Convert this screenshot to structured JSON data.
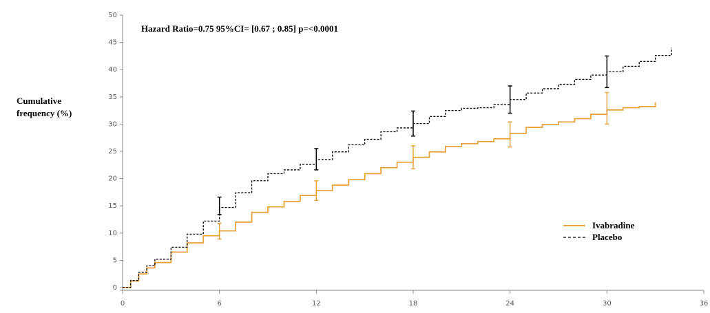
{
  "chart_data": {
    "type": "line",
    "title": "",
    "annotation": "Hazard Ratio=0.75 95%CI= [0.67 ; 0.85]   p=<0.0001",
    "xlabel": "",
    "ylabel": "Cumulative frequency (%)",
    "xlim": [
      0,
      36
    ],
    "ylim": [
      0,
      50
    ],
    "xticks": [
      0,
      6,
      12,
      18,
      24,
      30,
      36
    ],
    "yticks": [
      0,
      5,
      10,
      15,
      20,
      25,
      30,
      35,
      40,
      45,
      50
    ],
    "grid": false,
    "legend_position": "lower-right",
    "series": [
      {
        "name": "Ivabradine",
        "color": "#E8A33C",
        "style": "solid",
        "x": [
          0,
          0.5,
          1,
          1.5,
          2,
          3,
          4,
          5,
          6,
          7,
          8,
          9,
          10,
          11,
          12,
          13,
          14,
          15,
          16,
          17,
          18,
          19,
          20,
          21,
          22,
          23,
          24,
          25,
          26,
          27,
          28,
          29,
          30,
          31,
          32,
          33
        ],
        "y": [
          0,
          1.2,
          2.5,
          3.6,
          4.6,
          6.5,
          8.2,
          9.5,
          10.4,
          12.0,
          13.8,
          14.8,
          15.8,
          16.9,
          17.8,
          18.8,
          19.8,
          20.9,
          22.0,
          23.0,
          23.9,
          24.9,
          25.9,
          26.4,
          26.8,
          27.3,
          28.3,
          29.4,
          29.9,
          30.4,
          31.0,
          31.8,
          32.6,
          33.0,
          33.2,
          34.0
        ]
      },
      {
        "name": "Placebo",
        "color": "#000000",
        "style": "dashed",
        "x": [
          0,
          0.5,
          1,
          1.5,
          2,
          3,
          4,
          5,
          6,
          7,
          8,
          9,
          10,
          11,
          12,
          13,
          14,
          15,
          16,
          17,
          18,
          19,
          20,
          21,
          22,
          23,
          24,
          25,
          26,
          27,
          28,
          29,
          30,
          31,
          32,
          33,
          34
        ],
        "y": [
          0,
          1.3,
          2.8,
          4.0,
          5.2,
          7.4,
          9.8,
          12.2,
          14.7,
          17.4,
          19.6,
          20.9,
          21.6,
          22.6,
          23.5,
          24.9,
          26.2,
          27.2,
          28.6,
          29.3,
          30.1,
          31.4,
          32.5,
          32.9,
          33.0,
          33.6,
          34.5,
          35.7,
          36.5,
          37.3,
          38.2,
          39.0,
          39.6,
          40.6,
          41.5,
          42.6,
          44.0
        ]
      }
    ],
    "error_bars": [
      {
        "series": "Placebo",
        "x": 6,
        "y": 14.9,
        "low": 13.4,
        "high": 16.6
      },
      {
        "series": "Placebo",
        "x": 12,
        "y": 23.5,
        "low": 21.6,
        "high": 25.5
      },
      {
        "series": "Placebo",
        "x": 18,
        "y": 30.1,
        "low": 27.8,
        "high": 32.4
      },
      {
        "series": "Placebo",
        "x": 24,
        "y": 34.5,
        "low": 32.0,
        "high": 37.0
      },
      {
        "series": "Placebo",
        "x": 30,
        "y": 39.6,
        "low": 36.7,
        "high": 42.5
      },
      {
        "series": "Ivabradine",
        "x": 6,
        "y": 10.4,
        "low": 8.9,
        "high": 11.8
      },
      {
        "series": "Ivabradine",
        "x": 12,
        "y": 17.8,
        "low": 16.0,
        "high": 19.6
      },
      {
        "series": "Ivabradine",
        "x": 18,
        "y": 23.9,
        "low": 21.8,
        "high": 26.0
      },
      {
        "series": "Ivabradine",
        "x": 24,
        "y": 28.3,
        "low": 25.8,
        "high": 30.4
      },
      {
        "series": "Ivabradine",
        "x": 30,
        "y": 32.6,
        "low": 30.0,
        "high": 35.8
      }
    ]
  }
}
